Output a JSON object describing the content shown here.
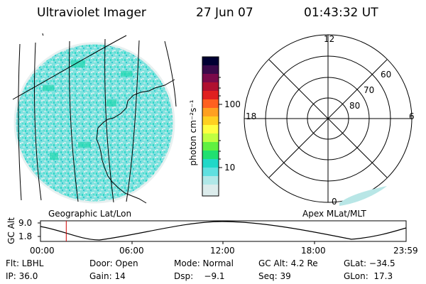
{
  "header": {
    "title": "Ultraviolet Imager",
    "date": "27 Jun 07",
    "time": "01:43:32 UT"
  },
  "geo_panel": {
    "label": "Geographic Lat/Lon"
  },
  "colorbar": {
    "unit_label": "photon cm⁻²s⁻¹",
    "ticks": [
      "100",
      "10"
    ],
    "colors": [
      "#000033",
      "#3a0a4a",
      "#7a0a4a",
      "#b01030",
      "#e02020",
      "#ff6020",
      "#ffa020",
      "#ffd020",
      "#ffff40",
      "#c0ff40",
      "#60f040",
      "#20e070",
      "#20d8c8",
      "#60e0e0",
      "#b0e8e8",
      "#dcecec"
    ]
  },
  "polar_panel": {
    "label": "Apex MLat/MLT",
    "mlt_labels": {
      "top": "12",
      "left": "18",
      "right": "6",
      "bottom": "0"
    },
    "lat_labels": [
      "60",
      "70",
      "80"
    ]
  },
  "orbit_plot": {
    "ylabel": "GC Alt",
    "yticks": [
      "9.0",
      "1.8"
    ],
    "xticks": [
      "00:00",
      "06:00",
      "12:00",
      "18:00",
      "23:59"
    ],
    "current_time_fraction": 0.0705
  },
  "info": {
    "row1": [
      "Flt: LBHL",
      "Door: Open",
      "Mode: Normal",
      "GC Alt: 4.2 Re",
      "GLat: −34.5"
    ],
    "row2": [
      "IP: 36.0",
      "Gain: 14",
      "Dsp:    −9.1",
      "Seq: 39",
      "GLon:  17.3"
    ]
  }
}
